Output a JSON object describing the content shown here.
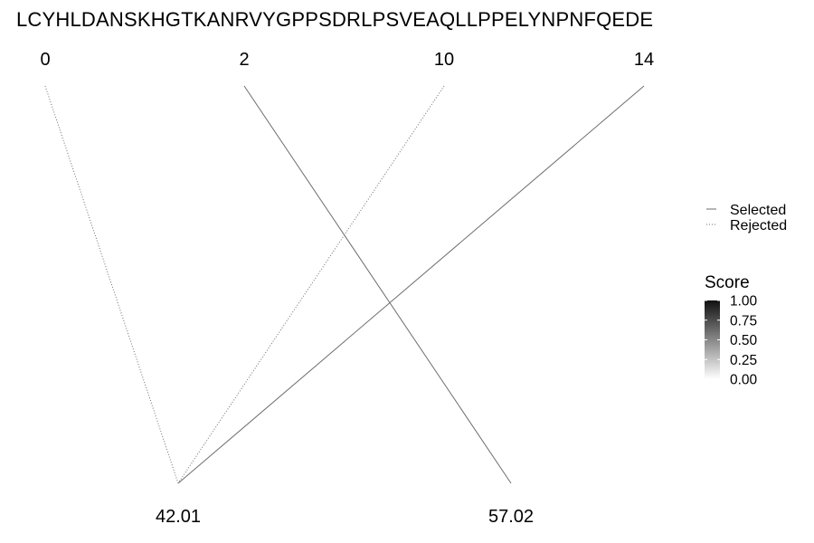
{
  "sequence": "LCYHLDANSKHGTKANRVYGPPSDRLPSVEAQLLPPELYNPNFQEDE",
  "top_labels": [
    "0",
    "2",
    "10",
    "14"
  ],
  "bottom_labels": [
    "42.01",
    "57.02"
  ],
  "links": [
    {
      "from": "0",
      "to": "42.01",
      "status": "Rejected"
    },
    {
      "from": "10",
      "to": "42.01",
      "status": "Rejected"
    },
    {
      "from": "14",
      "to": "42.01",
      "status": "Selected"
    },
    {
      "from": "2",
      "to": "57.02",
      "status": "Selected"
    }
  ],
  "legend": {
    "items": [
      {
        "label": "Selected",
        "style": "solid"
      },
      {
        "label": "Rejected",
        "style": "dotted"
      }
    ]
  },
  "score_legend": {
    "title": "Score",
    "ticks": [
      "1.00",
      "0.75",
      "0.50",
      "0.25",
      "0.00"
    ],
    "color_high": "#111111",
    "color_low": "#ffffff"
  },
  "colors": {
    "line": "#6e6e6e",
    "text": "#000000"
  }
}
